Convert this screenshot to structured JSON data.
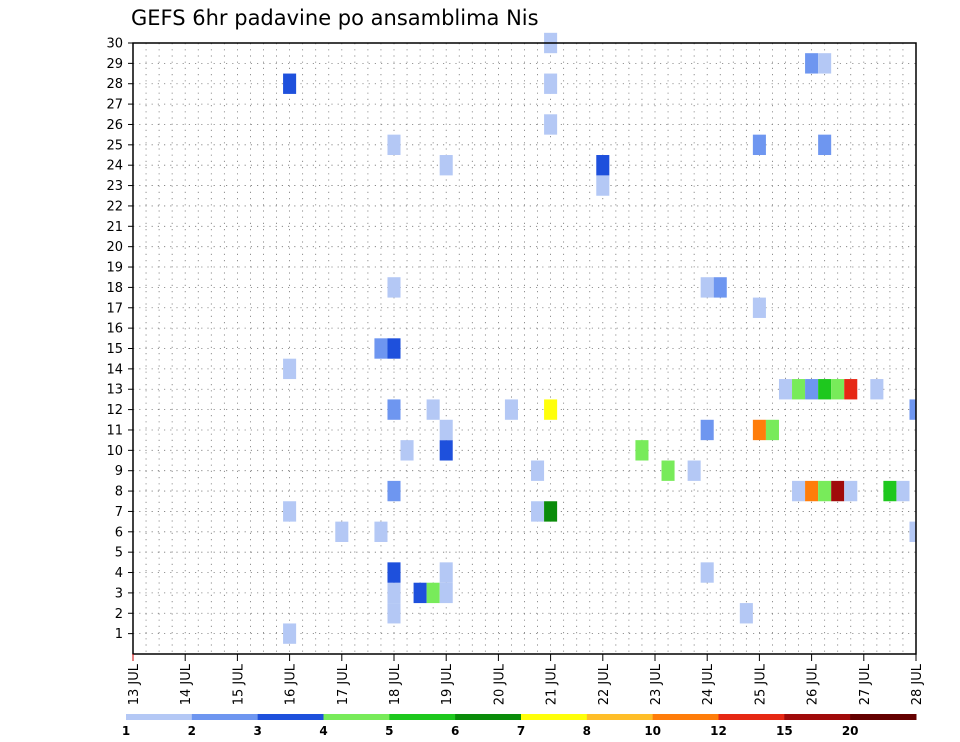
{
  "chart_data": {
    "type": "heatmap",
    "title": "GEFS 6hr padavine po ansamblima Nis",
    "xlabel": "",
    "ylabel": "",
    "x_tick_labels": [
      "13 JUL",
      "14 JUL",
      "15 JUL",
      "16 JUL",
      "17 JUL",
      "18 JUL",
      "19 JUL",
      "20 JUL",
      "21 JUL",
      "22 JUL",
      "23 JUL",
      "24 JUL",
      "25 JUL",
      "26 JUL",
      "27 JUL",
      "28 JUL"
    ],
    "x_range_days": [
      13,
      28
    ],
    "y_tick_labels": [
      "1",
      "2",
      "3",
      "4",
      "5",
      "6",
      "7",
      "8",
      "9",
      "10",
      "11",
      "12",
      "13",
      "14",
      "15",
      "16",
      "17",
      "18",
      "19",
      "20",
      "21",
      "22",
      "23",
      "24",
      "25",
      "26",
      "27",
      "28",
      "29",
      "30"
    ],
    "y_range": [
      0,
      30
    ],
    "grid": true,
    "colorbar": {
      "labels": [
        "1",
        "2",
        "3",
        "4",
        "5",
        "6",
        "7",
        "8",
        "10",
        "12",
        "15",
        "20"
      ],
      "colors": [
        "#b4c8f5",
        "#6e96f0",
        "#1e50dc",
        "#78eb5a",
        "#1ec81e",
        "#0a8c0a",
        "#ffff0a",
        "#ffbe28",
        "#ff7d0a",
        "#e62814",
        "#a00a0a",
        "#640000"
      ]
    },
    "cells": [
      {
        "x": 16.0,
        "y": 1,
        "c": 0
      },
      {
        "x": 18.0,
        "y": 2,
        "c": 0
      },
      {
        "x": 24.75,
        "y": 2,
        "c": 0
      },
      {
        "x": 18.0,
        "y": 3,
        "c": 0
      },
      {
        "x": 18.5,
        "y": 3,
        "c": 2
      },
      {
        "x": 18.75,
        "y": 3,
        "c": 3
      },
      {
        "x": 19.0,
        "y": 3,
        "c": 0
      },
      {
        "x": 18.0,
        "y": 4,
        "c": 2
      },
      {
        "x": 19.0,
        "y": 4,
        "c": 0
      },
      {
        "x": 24.0,
        "y": 4,
        "c": 0
      },
      {
        "x": 17.0,
        "y": 6,
        "c": 0
      },
      {
        "x": 17.75,
        "y": 6,
        "c": 0
      },
      {
        "x": 28.0,
        "y": 6,
        "c": 0
      },
      {
        "x": 16.0,
        "y": 7,
        "c": 0
      },
      {
        "x": 20.75,
        "y": 7,
        "c": 0
      },
      {
        "x": 21.0,
        "y": 7,
        "c": 5
      },
      {
        "x": 18.0,
        "y": 8,
        "c": 1
      },
      {
        "x": 25.75,
        "y": 8,
        "c": 0
      },
      {
        "x": 26.0,
        "y": 8,
        "c": 8
      },
      {
        "x": 26.25,
        "y": 8,
        "c": 3
      },
      {
        "x": 26.5,
        "y": 8,
        "c": 10
      },
      {
        "x": 26.75,
        "y": 8,
        "c": 0
      },
      {
        "x": 27.5,
        "y": 8,
        "c": 4
      },
      {
        "x": 27.75,
        "y": 8,
        "c": 0
      },
      {
        "x": 20.75,
        "y": 9,
        "c": 0
      },
      {
        "x": 23.25,
        "y": 9,
        "c": 3
      },
      {
        "x": 23.75,
        "y": 9,
        "c": 0
      },
      {
        "x": 18.25,
        "y": 10,
        "c": 0
      },
      {
        "x": 19.0,
        "y": 10,
        "c": 2
      },
      {
        "x": 22.75,
        "y": 10,
        "c": 3
      },
      {
        "x": 19.0,
        "y": 11,
        "c": 0
      },
      {
        "x": 24.0,
        "y": 11,
        "c": 1
      },
      {
        "x": 25.0,
        "y": 11,
        "c": 8
      },
      {
        "x": 25.25,
        "y": 11,
        "c": 3
      },
      {
        "x": 18.0,
        "y": 12,
        "c": 1
      },
      {
        "x": 18.75,
        "y": 12,
        "c": 0
      },
      {
        "x": 20.25,
        "y": 12,
        "c": 0
      },
      {
        "x": 21.0,
        "y": 12,
        "c": 6
      },
      {
        "x": 28.0,
        "y": 12,
        "c": 1
      },
      {
        "x": 16.0,
        "y": 14,
        "c": 0
      },
      {
        "x": 25.5,
        "y": 13,
        "c": 0
      },
      {
        "x": 25.75,
        "y": 13,
        "c": 3
      },
      {
        "x": 26.0,
        "y": 13,
        "c": 1
      },
      {
        "x": 26.25,
        "y": 13,
        "c": 4
      },
      {
        "x": 26.5,
        "y": 13,
        "c": 3
      },
      {
        "x": 26.75,
        "y": 13,
        "c": 9
      },
      {
        "x": 27.25,
        "y": 13,
        "c": 0
      },
      {
        "x": 17.75,
        "y": 15,
        "c": 1
      },
      {
        "x": 18.0,
        "y": 15,
        "c": 2
      },
      {
        "x": 25.0,
        "y": 17,
        "c": 0
      },
      {
        "x": 18.0,
        "y": 18,
        "c": 0
      },
      {
        "x": 24.0,
        "y": 18,
        "c": 0
      },
      {
        "x": 24.25,
        "y": 18,
        "c": 1
      },
      {
        "x": 22.0,
        "y": 23,
        "c": 0
      },
      {
        "x": 19.0,
        "y": 24,
        "c": 0
      },
      {
        "x": 22.0,
        "y": 24,
        "c": 2
      },
      {
        "x": 18.0,
        "y": 25,
        "c": 0
      },
      {
        "x": 25.0,
        "y": 25,
        "c": 1
      },
      {
        "x": 26.25,
        "y": 25,
        "c": 1
      },
      {
        "x": 21.0,
        "y": 26,
        "c": 0
      },
      {
        "x": 16.0,
        "y": 28,
        "c": 2
      },
      {
        "x": 21.0,
        "y": 28,
        "c": 0
      },
      {
        "x": 26.0,
        "y": 29,
        "c": 1
      },
      {
        "x": 26.25,
        "y": 29,
        "c": 0
      },
      {
        "x": 21.0,
        "y": 30,
        "c": 0
      }
    ]
  }
}
